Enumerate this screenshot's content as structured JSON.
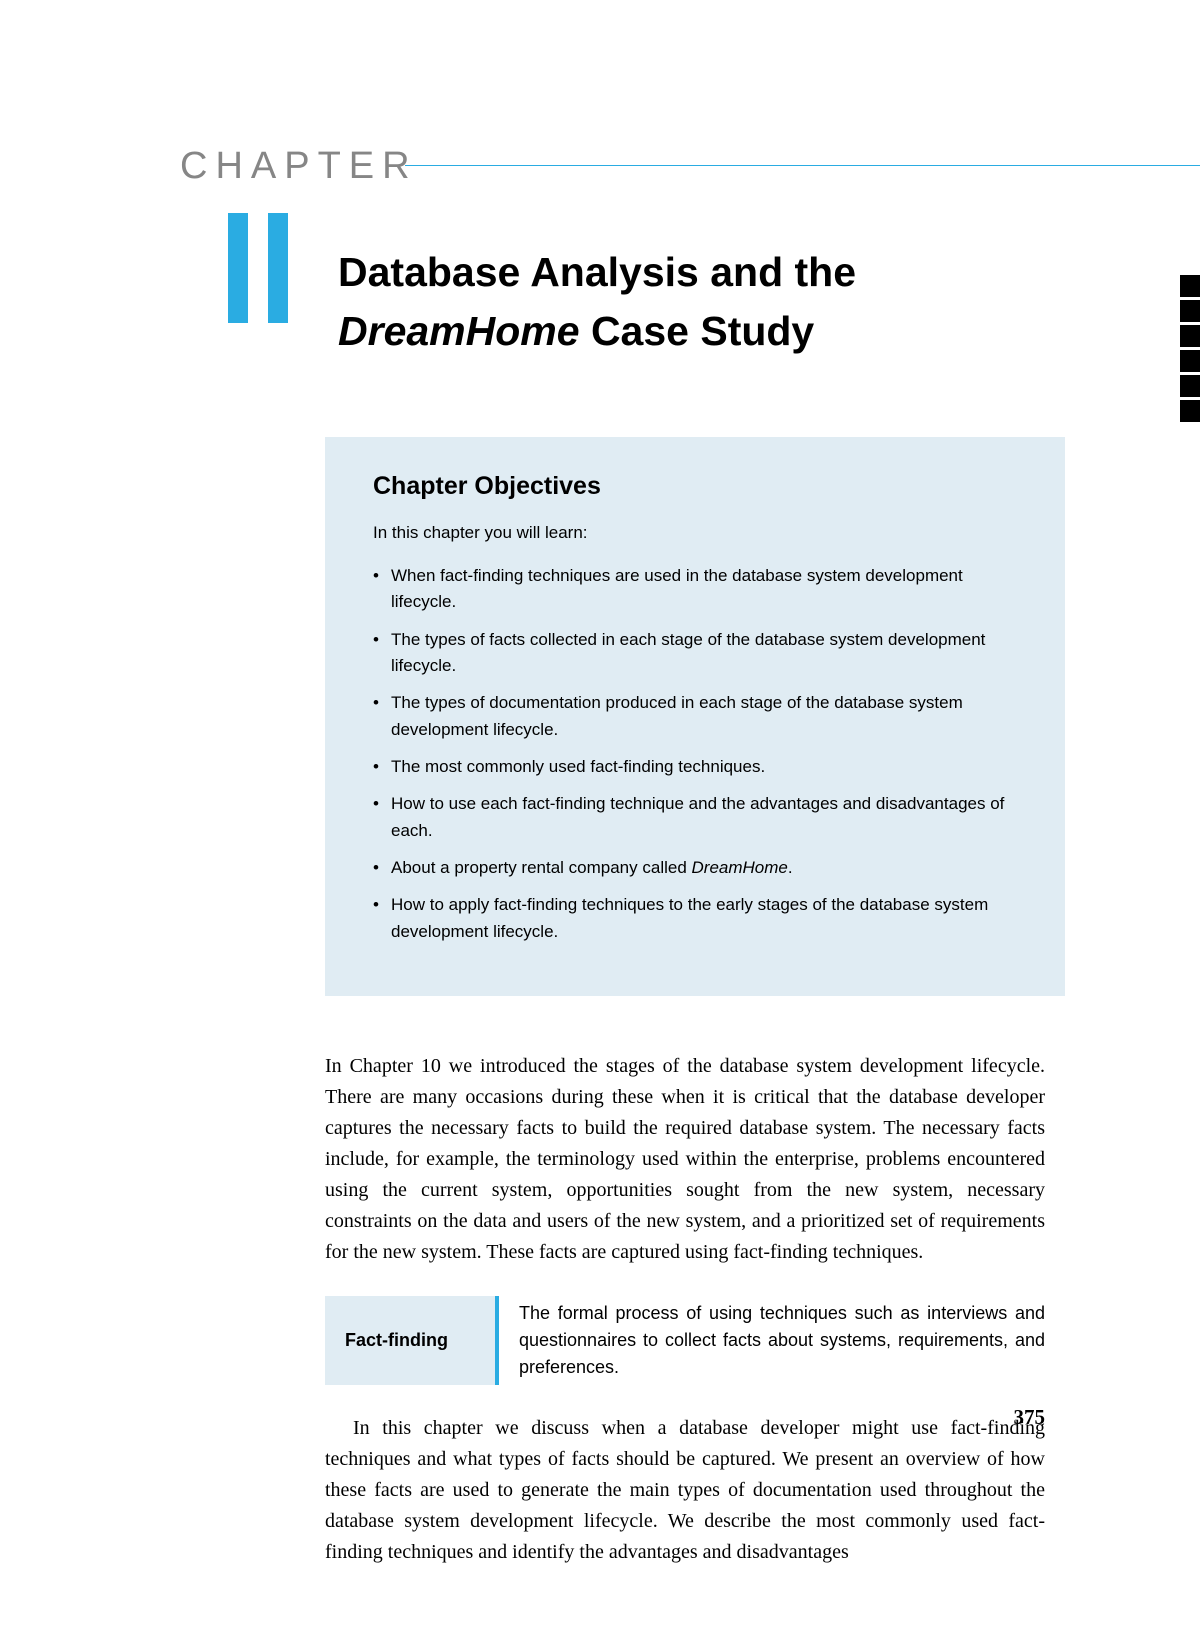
{
  "colors": {
    "accent": "#2aace2",
    "objectives_bg": "#e0ecf3",
    "chapter_label": "#868686",
    "text": "#000000",
    "tab_mark": "#000000",
    "background": "#ffffff"
  },
  "typography": {
    "body_font": "Georgia, serif",
    "heading_font": "Gill Sans, Helvetica Neue, Arial, sans-serif",
    "chapter_label_size": 38,
    "chapter_title_size": 41,
    "objectives_title_size": 25,
    "objectives_text_size": 17,
    "body_size": 20,
    "definition_size": 18,
    "page_number_size": 21
  },
  "chapter": {
    "label": "CHAPTER",
    "number": "11",
    "title_line1": "Database Analysis and the",
    "title_italic": "DreamHome",
    "title_line2_rest": " Case Study"
  },
  "tab_marks": {
    "count": 6,
    "width": 20,
    "height": 22,
    "gap": 3
  },
  "objectives": {
    "title": "Chapter Objectives",
    "intro": "In this chapter you will learn:",
    "items": [
      "When fact-finding techniques are used in the database system development lifecycle.",
      "The types of facts collected in each stage of the database system development lifecycle.",
      "The types of documentation produced in each stage of the database system development lifecycle.",
      "The most commonly used fact-finding techniques.",
      "How to use each fact-finding technique and the advantages and disadvantages of each.",
      "About a property rental company called DreamHome.",
      "How to apply fact-finding techniques to the early stages of the database system development lifecycle."
    ],
    "italic_in_item_index": 5,
    "italic_word": "DreamHome"
  },
  "body": {
    "para1": "In Chapter 10 we introduced the stages of the database system development lifecycle. There are many occasions during these when it is critical that the database developer captures the necessary facts to build the required database system. The necessary facts include, for example, the terminology used within the enterprise, problems encountered using the current system, opportunities sought from the new system, necessary constraints on the data and users of the new system, and a prioritized set of requirements for the new system. These facts are captured using fact-finding techniques.",
    "para2": "In this chapter we discuss when a database developer might use fact-finding techniques and what types of facts should be captured. We present an overview of how these facts are used to generate the main types of documentation used throughout the database system development lifecycle. We describe the most commonly used fact-finding techniques and identify the advantages and disadvantages"
  },
  "definition": {
    "term": "Fact-finding",
    "text": "The formal process of using techniques such as interviews and questionnaires to collect facts about systems, requirements, and preferences."
  },
  "page_number": "375"
}
